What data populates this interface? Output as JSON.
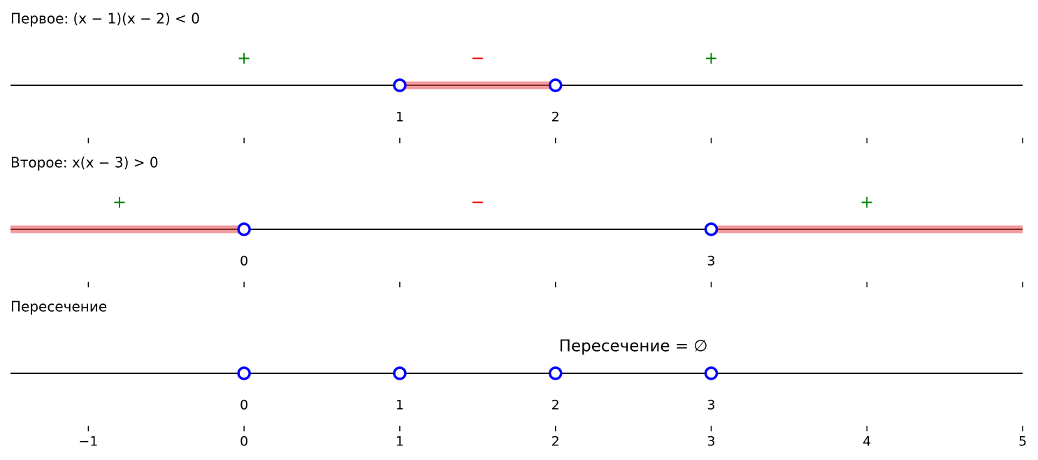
{
  "chart_data": {
    "type": "numberline",
    "xlim": [
      -1.5,
      5
    ],
    "xticks": [
      {
        "value": -1,
        "label": "−1"
      },
      0,
      1,
      2,
      3,
      4,
      5
    ],
    "axis_color": "#000000",
    "point_color": "#0000ff",
    "interval_color": "#e8484d",
    "panels": [
      {
        "title": "Первое: (x − 1)(x − 2) < 0",
        "points": [
          1,
          2
        ],
        "intervals": [
          [
            1,
            2
          ]
        ],
        "signs": [
          {
            "x": 0,
            "label": "+",
            "color": "green"
          },
          {
            "x": 1.5,
            "label": "−",
            "color": "red"
          },
          {
            "x": 3,
            "label": "+",
            "color": "green"
          }
        ]
      },
      {
        "title": "Второе: x(x − 3) > 0",
        "points": [
          0,
          3
        ],
        "intervals": [
          [
            -1.5,
            0
          ],
          [
            3,
            5
          ]
        ],
        "signs": [
          {
            "x": -0.8,
            "label": "+",
            "color": "green"
          },
          {
            "x": 1.5,
            "label": "−",
            "color": "red"
          },
          {
            "x": 4,
            "label": "+",
            "color": "green"
          }
        ]
      },
      {
        "title": "Пересечение",
        "points": [
          0,
          1,
          2,
          3
        ],
        "intervals": [],
        "signs": [],
        "annotation": {
          "x": 2.5,
          "text": "Пересечение = ∅"
        }
      }
    ]
  }
}
